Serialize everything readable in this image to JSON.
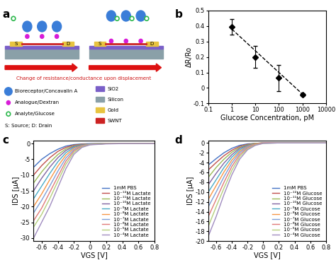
{
  "diagram": {
    "label": "a",
    "devices": [
      {
        "source": "S",
        "drain": "D"
      },
      {
        "source": "S",
        "drain": "D"
      }
    ],
    "caption": "Change of resistance/conductance upon displacement",
    "legend": [
      {
        "label": "Bioreceptor/Concavalin A",
        "color": "#3a7dd8"
      },
      {
        "label": "Analogue/Dextran",
        "color": "#d81bd8"
      },
      {
        "label": "Analyte/Glucose",
        "color": "#2db84d"
      }
    ],
    "layers": [
      {
        "label": "SiO2",
        "color": "#7a5fc8"
      },
      {
        "label": "Silicon",
        "color": "#8aa0a8"
      },
      {
        "label": "Gold",
        "color": "#e8c440"
      },
      {
        "label": "SWNT",
        "color": "#cc2222"
      }
    ],
    "abbreviations": "S: Source; D: Drain"
  },
  "chart_data": [
    {
      "label": "b",
      "type": "scatter",
      "xlabel": "Glucose Concentration, pM",
      "ylabel": "ΔR/Ro",
      "log": "x",
      "xlim": [
        0.1,
        10000
      ],
      "xticks": [
        0.1,
        1,
        10,
        100,
        1000,
        10000
      ],
      "ylim": [
        -0.1,
        0.5
      ],
      "yticks": [
        -0.1,
        0,
        0.1,
        0.2,
        0.3,
        0.4,
        0.5
      ],
      "series": [
        {
          "type": "scatter",
          "color": "#000000",
          "marker": "diamond",
          "x": [
            1,
            10,
            100,
            1000
          ],
          "values": [
            0.395,
            0.2,
            0.065,
            -0.045
          ],
          "error": [
            0.05,
            0.07,
            0.085,
            0.01
          ]
        },
        {
          "type": "line",
          "color": "#000000",
          "line_style": "dashed",
          "x": [
            1,
            1000
          ],
          "values": [
            0.38,
            -0.04
          ]
        }
      ]
    },
    {
      "label": "c",
      "type": "line",
      "xlabel": "VGS [V]",
      "ylabel": "IDS [μA]",
      "legend": "lower right",
      "x": [
        -0.7,
        -0.6,
        -0.5,
        -0.4,
        -0.3,
        -0.2,
        -0.1,
        0,
        0.2,
        0.4,
        0.6,
        0.8
      ],
      "xlim": [
        -0.7,
        0.8
      ],
      "xticks": [
        -0.6,
        -0.4,
        -0.2,
        0,
        0.2,
        0.4,
        0.6,
        0.8
      ],
      "ylim": [
        -31,
        1
      ],
      "yticks": [
        -30,
        -25,
        -20,
        -15,
        -10,
        -5,
        0
      ],
      "series": [
        {
          "name": "1mM PBS",
          "color": "#4472c4",
          "values": [
            -7.5,
            -5,
            -3.2,
            -1.8,
            -0.8,
            -0.3,
            -0.1,
            0,
            0,
            0,
            0,
            0
          ]
        },
        {
          "name": "10⁻¹²M Lactate",
          "color": "#c0504d",
          "values": [
            -10,
            -7,
            -4.5,
            -2.5,
            -1.2,
            -0.5,
            -0.2,
            -0.1,
            0,
            0,
            0,
            0
          ]
        },
        {
          "name": "10⁻¹¹M Lactate",
          "color": "#9bbb59",
          "values": [
            -12.5,
            -9,
            -6,
            -3.5,
            -1.7,
            -0.7,
            -0.3,
            -0.1,
            0,
            0,
            0,
            0
          ]
        },
        {
          "name": "10⁻¹⁰M Lactate",
          "color": "#8064a2",
          "values": [
            -15,
            -11,
            -7.5,
            -4.5,
            -2.2,
            -0.9,
            -0.4,
            -0.1,
            0,
            0,
            0,
            0
          ]
        },
        {
          "name": "10⁻⁹M Lactate",
          "color": "#4bacc6",
          "values": [
            -17.5,
            -13.5,
            -9.5,
            -5.8,
            -2.9,
            -1.2,
            -0.5,
            -0.2,
            0,
            0,
            0,
            0
          ]
        },
        {
          "name": "10⁻⁸M Lactate",
          "color": "#f79646",
          "values": [
            -20,
            -16,
            -11.5,
            -7.2,
            -3.7,
            -1.5,
            -0.6,
            -0.2,
            0,
            0,
            0,
            0
          ]
        },
        {
          "name": "10⁻⁷M Lactate",
          "color": "#7f9fd8",
          "values": [
            -22,
            -18,
            -13.5,
            -8.8,
            -4.6,
            -1.9,
            -0.7,
            -0.2,
            0,
            0,
            0,
            0
          ]
        },
        {
          "name": "10⁻⁶M Lactate",
          "color": "#e07a78",
          "values": [
            -24.5,
            -20.5,
            -15.5,
            -10.5,
            -5.6,
            -2.3,
            -0.8,
            -0.3,
            0,
            0,
            0,
            0
          ]
        },
        {
          "name": "10⁻⁵M Lactate",
          "color": "#b5d07d",
          "values": [
            -26.5,
            -22.5,
            -17.5,
            -12,
            -6.6,
            -2.8,
            -1,
            -0.3,
            0,
            0,
            0,
            0
          ]
        },
        {
          "name": "10⁻⁴M Lactate",
          "color": "#a08cc0",
          "values": [
            -30,
            -25,
            -20,
            -14,
            -8,
            -3.4,
            -1.2,
            -0.4,
            -0.1,
            0,
            0,
            0
          ]
        }
      ]
    },
    {
      "label": "d",
      "type": "line",
      "xlabel": "VGS [V]",
      "ylabel": "IDS [μA]",
      "legend": "lower right",
      "x": [
        -0.7,
        -0.6,
        -0.5,
        -0.4,
        -0.3,
        -0.2,
        -0.1,
        0,
        0.2,
        0.4,
        0.6,
        0.8
      ],
      "xlim": [
        -0.7,
        0.8
      ],
      "xticks": [
        -0.6,
        -0.4,
        -0.2,
        0,
        0.2,
        0.4,
        0.6,
        0.8
      ],
      "ylim": [
        -20,
        0.5
      ],
      "yticks": [
        -20,
        -18,
        -16,
        -14,
        -12,
        -10,
        -8,
        -6,
        -4,
        -2,
        0
      ],
      "series": [
        {
          "name": "1mM PBS",
          "color": "#4472c4",
          "values": [
            -4.5,
            -3.2,
            -2,
            -1.1,
            -0.5,
            -0.2,
            -0.1,
            0,
            0,
            0,
            0,
            0
          ]
        },
        {
          "name": "10⁻¹²M Glucose",
          "color": "#c0504d",
          "values": [
            -5.5,
            -4,
            -2.6,
            -1.5,
            -0.7,
            -0.3,
            -0.1,
            0,
            0,
            0,
            0,
            0
          ]
        },
        {
          "name": "10⁻¹¹M Glucose",
          "color": "#9bbb59",
          "values": [
            -7,
            -5,
            -3.3,
            -1.9,
            -0.9,
            -0.4,
            -0.1,
            0,
            0,
            0,
            0,
            0
          ]
        },
        {
          "name": "10⁻¹⁰M Glucose",
          "color": "#8064a2",
          "values": [
            -8.5,
            -6.2,
            -4.1,
            -2.4,
            -1.1,
            -0.5,
            -0.2,
            0,
            0,
            0,
            0,
            0
          ]
        },
        {
          "name": "10⁻⁹M Glucose",
          "color": "#4bacc6",
          "values": [
            -10,
            -7.5,
            -5,
            -2.9,
            -1.4,
            -0.6,
            -0.2,
            0,
            0,
            0,
            0,
            0
          ]
        },
        {
          "name": "10⁻⁸M Glucose",
          "color": "#f79646",
          "values": [
            -11.5,
            -8.7,
            -5.9,
            -3.5,
            -1.7,
            -0.7,
            -0.2,
            0,
            0,
            0,
            0,
            0
          ]
        },
        {
          "name": "10⁻⁷M Glucose",
          "color": "#7f9fd8",
          "values": [
            -13,
            -10,
            -6.9,
            -4.1,
            -2,
            -0.8,
            -0.3,
            0,
            0,
            0,
            0,
            0
          ]
        },
        {
          "name": "10⁻⁶M Glucose",
          "color": "#e07a78",
          "values": [
            -15,
            -11.5,
            -8,
            -4.8,
            -2.4,
            -1,
            -0.3,
            0,
            0,
            0,
            0,
            0
          ]
        },
        {
          "name": "10⁻⁵M Glucose",
          "color": "#b5d07d",
          "values": [
            -17,
            -13,
            -9.2,
            -5.6,
            -2.8,
            -1.2,
            -0.4,
            -0.1,
            0,
            0,
            0,
            0
          ]
        },
        {
          "name": "10⁻⁴M Glucose",
          "color": "#a08cc0",
          "values": [
            -19,
            -15,
            -10.5,
            -6.5,
            -3.3,
            -1.4,
            -0.5,
            -0.1,
            0,
            0,
            0,
            0
          ]
        }
      ]
    }
  ]
}
